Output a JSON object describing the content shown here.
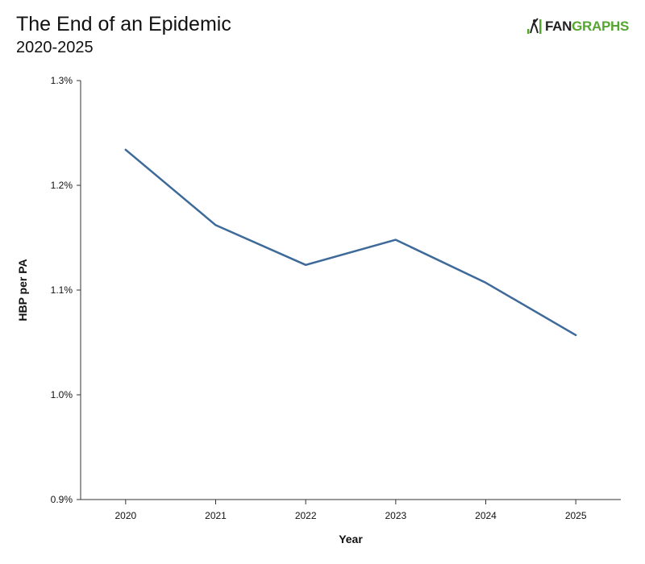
{
  "header": {
    "title": "The End of an Epidemic",
    "subtitle": "2020-2025"
  },
  "logo": {
    "fan": "FAN",
    "graphs": "GRAPHS",
    "icon": "batter-silhouette-icon",
    "colors": {
      "fan": "#222222",
      "graphs": "#55a630"
    }
  },
  "chart_data": {
    "type": "line",
    "title": "The End of an Epidemic",
    "subtitle": "2020-2025",
    "xlabel": "Year",
    "ylabel": "HBP per PA",
    "x": [
      "2020",
      "2021",
      "2022",
      "2023",
      "2024",
      "2025"
    ],
    "series": [
      {
        "values": [
          1.234,
          1.162,
          1.124,
          1.148,
          1.107,
          1.057
        ],
        "color": "#3d6a99"
      }
    ],
    "ylim": [
      0.9,
      1.3
    ],
    "yticks": [
      0.9,
      1.0,
      1.1,
      1.2,
      1.3
    ],
    "ytick_labels": [
      "0.9%",
      "1.0%",
      "1.1%",
      "1.2%",
      "1.3%"
    ],
    "grid": false,
    "legend": "none"
  }
}
